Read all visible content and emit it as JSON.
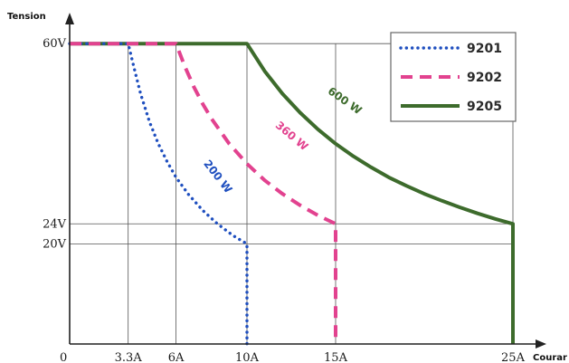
{
  "chart_data": {
    "type": "line",
    "xlabel": "Courar",
    "ylabel": "Tension",
    "origin_label": "0",
    "xlim": [
      0,
      26
    ],
    "ylim": [
      0,
      68
    ],
    "x_ticks": [
      {
        "value": 3.3,
        "label": "3.3A"
      },
      {
        "value": 6,
        "label": "6A"
      },
      {
        "value": 10,
        "label": "10A"
      },
      {
        "value": 15,
        "label": "15A"
      },
      {
        "value": 25,
        "label": "25A"
      }
    ],
    "y_ticks": [
      {
        "value": 60,
        "label": "60V"
      },
      {
        "value": 24,
        "label": "24V"
      },
      {
        "value": 20,
        "label": "20V"
      }
    ],
    "legend_position": "top-right",
    "series": [
      {
        "name": "9201",
        "style": "dotted",
        "color": "#1f4fbf",
        "power_label": "200 W",
        "label_at": [
          8.2,
          33
        ],
        "label_angle": 52,
        "points": [
          [
            0,
            60
          ],
          [
            3.3,
            60
          ],
          [
            3.6,
            55.6
          ],
          [
            4,
            50
          ],
          [
            4.5,
            44.4
          ],
          [
            5,
            40
          ],
          [
            5.5,
            36.4
          ],
          [
            6,
            33.3
          ],
          [
            6.7,
            29.9
          ],
          [
            7.5,
            26.7
          ],
          [
            8.3,
            24.1
          ],
          [
            9.2,
            21.7
          ],
          [
            10,
            20
          ],
          [
            10,
            0
          ]
        ]
      },
      {
        "name": "9202",
        "style": "dashed",
        "color": "#e2428f",
        "power_label": "360 W",
        "label_at": [
          12.4,
          41
        ],
        "label_angle": 40,
        "points": [
          [
            0,
            60
          ],
          [
            6,
            60
          ],
          [
            6.5,
            55.4
          ],
          [
            7,
            51.4
          ],
          [
            7.5,
            48
          ],
          [
            8,
            45
          ],
          [
            9,
            40
          ],
          [
            10,
            36
          ],
          [
            11,
            32.7
          ],
          [
            12,
            30
          ],
          [
            13,
            27.7
          ],
          [
            14,
            25.7
          ],
          [
            15,
            24
          ],
          [
            15,
            0
          ]
        ]
      },
      {
        "name": "9205",
        "style": "solid",
        "color": "#3d6b2c",
        "power_label": "600 W",
        "label_at": [
          15.4,
          48
        ],
        "label_angle": 35,
        "points": [
          [
            0,
            60
          ],
          [
            10,
            60
          ],
          [
            11,
            54.5
          ],
          [
            12,
            50
          ],
          [
            13,
            46.2
          ],
          [
            14,
            42.9
          ],
          [
            15,
            40
          ],
          [
            16,
            37.5
          ],
          [
            17,
            35.3
          ],
          [
            18,
            33.3
          ],
          [
            19,
            31.6
          ],
          [
            20,
            30
          ],
          [
            21,
            28.6
          ],
          [
            22,
            27.3
          ],
          [
            23,
            26.1
          ],
          [
            24,
            25
          ],
          [
            25,
            24
          ],
          [
            25,
            0
          ]
        ]
      }
    ]
  }
}
